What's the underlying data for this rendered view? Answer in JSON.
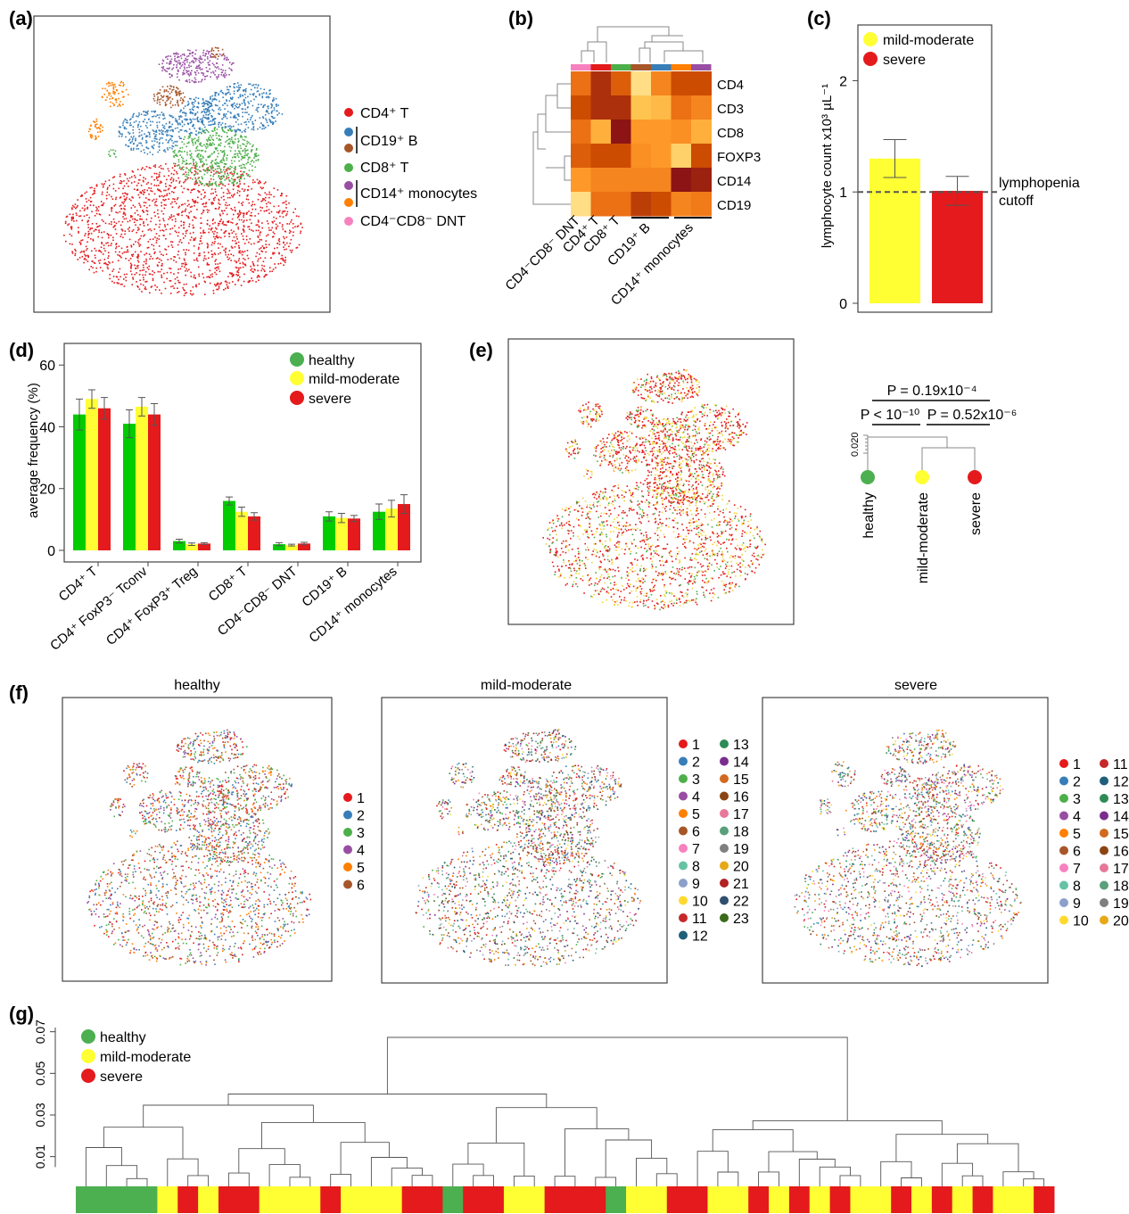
{
  "panels": {
    "a": "(a)",
    "b": "(b)",
    "c": "(c)",
    "d": "(d)",
    "e": "(e)",
    "f": "(f)",
    "g": "(g)"
  },
  "colors": {
    "cd4t": "#e41a1c",
    "cd19b": "#377eb8",
    "cd8t": "#4daf4a",
    "cd14mono": "#984ea3",
    "dnt": "#f781bf",
    "brown": "#a65628",
    "orange": "#ff7f00",
    "healthy": "#4caf50",
    "mild": "#ffff33",
    "severe": "#e41a1c"
  },
  "chart_data": [
    {
      "panel": "a",
      "type": "scatter",
      "title": "",
      "legend": [
        {
          "label": "CD4⁺ T",
          "color": "#e41a1c"
        },
        {
          "label": "CD19⁺ B",
          "color": "#377eb8",
          "extra_color": "#a65628"
        },
        {
          "label": "CD8⁺ T",
          "color": "#4daf4a"
        },
        {
          "label": "CD14⁺ monocytes",
          "color": "#984ea3",
          "extra_color": "#ff7f00"
        },
        {
          "label": "CD4⁻CD8⁻ DNT",
          "color": "#f781bf"
        }
      ]
    },
    {
      "panel": "b",
      "type": "heatmap",
      "rows": [
        "CD4",
        "CD3",
        "CD8",
        "FOXP3",
        "CD14",
        "CD19"
      ],
      "columns": [
        "CD4⁻CD8⁻ DNT",
        "CD4⁺ T",
        "CD8⁺ T",
        "CD19⁺ B",
        "CD19⁺ B",
        "CD14⁺ monocytes",
        "CD14⁺ monocytes"
      ],
      "column_colors": [
        "#f781bf",
        "#e41a1c",
        "#4daf4a",
        "#a65628",
        "#377eb8",
        "#ff7f00",
        "#984ea3"
      ],
      "column_labels": [
        "CD4⁻CD8⁻ DNT",
        "CD4⁺ T",
        "CD8⁺ T",
        "CD19⁺ B",
        "CD14⁺ monocytes"
      ],
      "values": [
        [
          0.6,
          0.9,
          0.7,
          0.1,
          0.5,
          0.8,
          0.8
        ],
        [
          0.8,
          0.9,
          0.9,
          0.2,
          0.25,
          0.6,
          0.5
        ],
        [
          0.6,
          0.3,
          1.0,
          0.4,
          0.4,
          0.45,
          0.3
        ],
        [
          0.7,
          0.8,
          0.8,
          0.45,
          0.4,
          0.15,
          0.8
        ],
        [
          0.4,
          0.5,
          0.5,
          0.5,
          0.5,
          1.0,
          0.95
        ],
        [
          0.1,
          0.6,
          0.6,
          0.85,
          0.8,
          0.5,
          0.55
        ]
      ]
    },
    {
      "panel": "c",
      "type": "bar",
      "categories": [
        "mild-moderate",
        "severe"
      ],
      "values": [
        1.3,
        1.01
      ],
      "errors": [
        0.17,
        0.13
      ],
      "colors": [
        "#ffff33",
        "#e41a1c"
      ],
      "ylabel": "lymphocyte count x10³ µL⁻¹",
      "ylim": [
        0,
        2.5
      ],
      "yticks": [
        "0",
        "1",
        "2"
      ],
      "reference_line": {
        "value": 1,
        "label1": "lymphopenia",
        "label2": "cutoff"
      },
      "legend": [
        {
          "label": "mild-moderate",
          "color": "#ffff33"
        },
        {
          "label": "severe",
          "color": "#e41a1c"
        }
      ]
    },
    {
      "panel": "d",
      "type": "bar",
      "categories": [
        "CD4⁺ T",
        "CD4⁺ FoxP3⁻ Tconv",
        "CD4⁺ FoxP3⁺ Treg",
        "CD8⁺ T",
        "CD4⁻CD8⁻ DNT",
        "CD19⁺ B",
        "CD14⁺ monocytes"
      ],
      "ylabel": "average frequency (%)",
      "ylim": [
        0,
        67
      ],
      "yticks": [
        "0",
        "20",
        "40",
        "60"
      ],
      "series": [
        {
          "name": "healthy",
          "color": "#00cc00",
          "values": [
            44,
            41,
            3,
            16,
            2,
            11,
            12.5
          ],
          "errors": [
            5,
            4.5,
            0.6,
            1.3,
            0.5,
            1.5,
            2.5
          ]
        },
        {
          "name": "mild-moderate",
          "color": "#ffff33",
          "values": [
            49,
            46.5,
            2,
            12.5,
            1.7,
            10.5,
            13.5
          ],
          "errors": [
            3,
            3,
            0.4,
            1.5,
            0.3,
            1.5,
            2.7
          ]
        },
        {
          "name": "severe",
          "color": "#e41a1c",
          "values": [
            46,
            44,
            2.2,
            11,
            2.2,
            10.3,
            15
          ],
          "errors": [
            3.5,
            3.5,
            0.3,
            1.2,
            0.4,
            1,
            3
          ]
        }
      ]
    },
    {
      "panel": "e",
      "type": "scatter",
      "dendrogram": {
        "scale_tick": "0.020",
        "leaves": [
          "healthy",
          "mild-moderate",
          "severe"
        ],
        "p_top": "P = 0.19x10⁻⁴",
        "p_left": "P < 10⁻¹⁰",
        "p_right": "P = 0.52x10⁻⁶"
      }
    },
    {
      "panel": "f",
      "type": "scatter",
      "subplots": [
        {
          "title": "healthy",
          "legend": [
            "1",
            "2",
            "3",
            "4",
            "5",
            "6"
          ]
        },
        {
          "title": "mild-moderate",
          "legend": [
            "1",
            "2",
            "3",
            "4",
            "5",
            "6",
            "7",
            "8",
            "9",
            "10",
            "11",
            "12",
            "13",
            "14",
            "15",
            "16",
            "17",
            "18",
            "19",
            "20",
            "21",
            "22",
            "23"
          ]
        },
        {
          "title": "severe",
          "legend": [
            "1",
            "2",
            "3",
            "4",
            "5",
            "6",
            "7",
            "8",
            "9",
            "10",
            "11",
            "12",
            "13",
            "14",
            "15",
            "16",
            "17",
            "18",
            "19",
            "20"
          ]
        }
      ],
      "legend_colors": [
        "#e41a1c",
        "#377eb8",
        "#4daf4a",
        "#984ea3",
        "#ff7f00",
        "#a65628",
        "#f781bf",
        "#66c2a5",
        "#8da0cb",
        "#ffd92f",
        "#c62828",
        "#1f5f7a",
        "#2e8b57",
        "#7b2d8e",
        "#d2691e",
        "#8b4513",
        "#e7789a",
        "#5aa07a",
        "#7f7f7f",
        "#e6a817",
        "#b22222",
        "#2f4f6f",
        "#3a6b1a"
      ]
    },
    {
      "panel": "g",
      "type": "scatter",
      "yticks": [
        "0.01",
        "0.03",
        "0.05",
        "0.07"
      ],
      "legend": [
        {
          "label": "healthy",
          "color": "#4caf50"
        },
        {
          "label": "mild-moderate",
          "color": "#ffff33"
        },
        {
          "label": "severe",
          "color": "#e41a1c"
        }
      ],
      "leaf_groups": [
        "H",
        "H",
        "H",
        "H",
        "M",
        "S",
        "M",
        "S",
        "S",
        "M",
        "M",
        "M",
        "S",
        "M",
        "M",
        "M",
        "S",
        "S",
        "H",
        "S",
        "S",
        "M",
        "M",
        "S",
        "S",
        "S",
        "H",
        "M",
        "M",
        "S",
        "S",
        "M",
        "M",
        "S",
        "M",
        "S",
        "M",
        "S",
        "M",
        "M",
        "S",
        "M",
        "S",
        "M",
        "S",
        "M",
        "M",
        "S"
      ]
    }
  ]
}
